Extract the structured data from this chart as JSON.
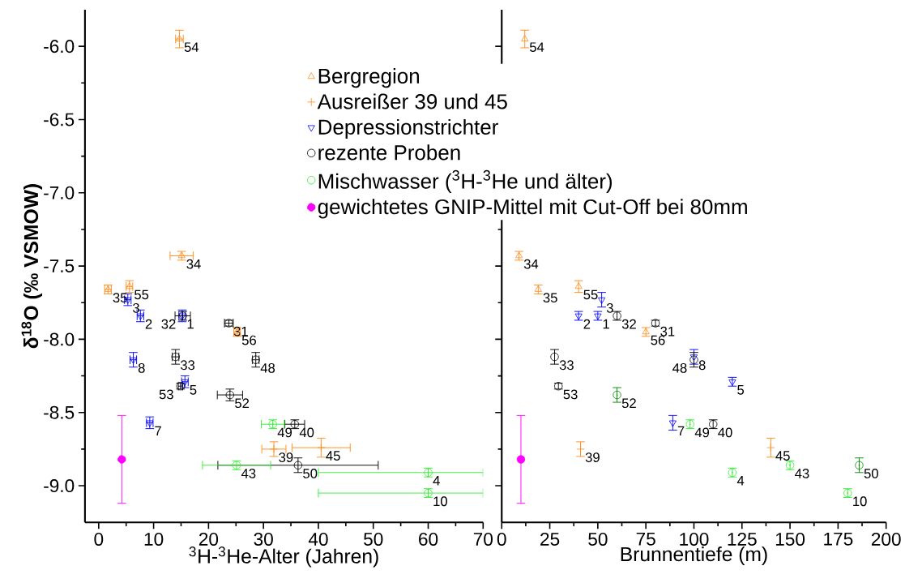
{
  "chart_data": [
    {
      "type": "scatter",
      "xlabel": "$^{3}$H-$^{3}$He-Alter (Jahren)",
      "ylabel": "δ$^{18}$O (‰ VSMOW)",
      "xlim": [
        -2.5,
        70
      ],
      "ylim": [
        -9.25,
        -5.75
      ],
      "xticks": [
        0,
        10,
        20,
        30,
        40,
        50,
        60,
        70
      ],
      "yticks": [
        {
          "value": -6,
          "label": "-6.0"
        },
        {
          "value": -6.5,
          "label": "-6.5"
        },
        {
          "value": -7,
          "label": "-7.0"
        },
        {
          "value": -7.5,
          "label": "-7.5"
        },
        {
          "value": -8,
          "label": "-8.0"
        },
        {
          "value": -8.5,
          "label": "-8.5"
        },
        {
          "value": -9,
          "label": "-9.0"
        }
      ],
      "legend": "top",
      "series": [
        {
          "name": "Bergregion",
          "color": "#ff8c1a",
          "marker": "triangle",
          "x": [
            14.7,
            15.1,
            1.7,
            5.6,
            25.2
          ],
          "values": [
            -5.95,
            -7.43,
            -7.66,
            -7.64,
            -7.95
          ],
          "errors": [
            0.06,
            0.03,
            0.03,
            0.04,
            0.03
          ],
          "xerrors": [
            0.7,
            2.1,
            0.6,
            0.6,
            0.6
          ]
        },
        {
          "name": "Ausreißer 39 und 45",
          "color": "#ff8c1a",
          "marker": "cross",
          "x": [
            31.9,
            40.5
          ],
          "values": [
            -8.75,
            -8.74
          ],
          "errors": [
            0.05,
            0.065
          ],
          "xerrors": [
            2.2,
            5.3
          ]
        },
        {
          "name": "Depressionstrichter",
          "color": "#0000ff",
          "marker": "triangle-down",
          "x": [
            15.2,
            5.3,
            7.6,
            6.3,
            15.7,
            9.3
          ],
          "values": [
            -7.84,
            -7.73,
            -7.84,
            -8.14,
            -8.29,
            -8.57
          ],
          "errors": [
            0.04,
            0.04,
            0.04,
            0.05,
            0.04,
            0.04
          ],
          "xerrors": [
            0.6,
            0.6,
            0.6,
            0.6,
            0.6,
            0.6
          ]
        },
        {
          "name": "rezente Proben",
          "color": "#000000",
          "marker": "circle",
          "x": [
            15.3,
            23.7,
            14.0,
            14.9,
            28.6,
            23.9,
            35.7,
            36.3
          ],
          "values": [
            -7.84,
            -7.89,
            -8.12,
            -8.32,
            -8.14,
            -8.38,
            -8.58,
            -8.86
          ],
          "errors": [
            0.03,
            0.02,
            0.05,
            0.02,
            0.05,
            0.04,
            0.03,
            0.05
          ],
          "xerrors": [
            1.4,
            0.8,
            0.6,
            0.4,
            0.6,
            2.3,
            1.8,
            14.6
          ]
        },
        {
          "name": "Mischwasser ($^{3}$H-$^{3}$He und älter)",
          "color": "#33ee33",
          "marker": "circle-dot",
          "x": [
            31.7,
            25.1,
            60,
            60
          ],
          "values": [
            -8.58,
            -8.86,
            -8.91,
            -9.05
          ],
          "errors": [
            0.03,
            0.03,
            0.03,
            0.03
          ],
          "xerrors": [
            2.1,
            6.2,
            [
              40,
              70
            ],
            [
              40,
              70
            ]
          ]
        },
        {
          "name": "gewichtetes GNIP-Mittel mit Cut-Off bei 80mm",
          "color": "#ff00ff",
          "marker": "circle-filled",
          "x": [
            4.2
          ],
          "values": [
            -8.82
          ],
          "errors": [
            0.3
          ]
        }
      ],
      "annotations": [
        {
          "text": "54",
          "x": 14.7,
          "y": -5.95
        },
        {
          "text": "34",
          "x": 15.1,
          "y": -7.43
        },
        {
          "text": "35",
          "x": 1.7,
          "y": -7.66
        },
        {
          "text": "55",
          "x": 5.6,
          "y": -7.64
        },
        {
          "text": "56",
          "x": 25.2,
          "y": -7.95
        },
        {
          "text": "39",
          "x": 31.9,
          "y": -8.75
        },
        {
          "text": "45",
          "x": 40.5,
          "y": -8.74
        },
        {
          "text": "1",
          "x": 15.2,
          "y": -7.84
        },
        {
          "text": "3",
          "x": 5.3,
          "y": -7.73
        },
        {
          "text": "2",
          "x": 7.6,
          "y": -7.84
        },
        {
          "text": "8",
          "x": 6.3,
          "y": -8.14
        },
        {
          "text": "5",
          "x": 15.7,
          "y": -8.29
        },
        {
          "text": "7",
          "x": 9.3,
          "y": -8.57
        },
        {
          "text": "32",
          "x": 15.3,
          "y": -7.84
        },
        {
          "text": "31",
          "x": 23.7,
          "y": -7.89
        },
        {
          "text": "33",
          "x": 14.0,
          "y": -8.12
        },
        {
          "text": "53",
          "x": 14.9,
          "y": -8.32
        },
        {
          "text": "48",
          "x": 28.6,
          "y": -8.14
        },
        {
          "text": "52",
          "x": 23.9,
          "y": -8.38
        },
        {
          "text": "40",
          "x": 35.7,
          "y": -8.58
        },
        {
          "text": "50",
          "x": 36.3,
          "y": -8.86
        },
        {
          "text": "49",
          "x": 31.7,
          "y": -8.58
        },
        {
          "text": "43",
          "x": 25.1,
          "y": -8.86
        },
        {
          "text": "4",
          "x": 60,
          "y": -8.91
        },
        {
          "text": "10",
          "x": 60,
          "y": -9.05
        }
      ]
    },
    {
      "type": "scatter",
      "xlabel": "Brunnentiefe (m)",
      "xlim": [
        0,
        200
      ],
      "ylim": [
        -9.25,
        -5.75
      ],
      "xticks": [
        0,
        25,
        50,
        75,
        100,
        125,
        150,
        175,
        200
      ],
      "yticks": [
        {
          "value": -6,
          "label": null
        },
        {
          "value": -6.5,
          "label": null
        },
        {
          "value": -7,
          "label": null
        },
        {
          "value": -7.5,
          "label": null
        },
        {
          "value": -8,
          "label": null
        },
        {
          "value": -8.5,
          "label": null
        },
        {
          "value": -9,
          "label": null
        }
      ],
      "tick_labels": "x",
      "series": [
        {
          "color": "#ff8c1a",
          "marker": "triangle",
          "x": [
            12,
            9,
            19,
            40,
            75
          ],
          "values": [
            -5.95,
            -7.43,
            -7.66,
            -7.64,
            -7.95
          ],
          "errors": [
            0.06,
            0.03,
            0.03,
            0.04,
            0.03
          ]
        },
        {
          "color": "#ff8c1a",
          "marker": "cross",
          "x": [
            41,
            140
          ],
          "values": [
            -8.75,
            -8.74
          ],
          "errors": [
            0.05,
            0.065
          ]
        },
        {
          "color": "#0000ff",
          "marker": "triangle-down",
          "x": [
            40,
            50,
            52,
            100,
            120,
            89
          ],
          "values": [
            -7.84,
            -7.84,
            -7.73,
            -8.12,
            -8.29,
            -8.57
          ],
          "errors": [
            0.03,
            0.03,
            0.05,
            0.05,
            0.03,
            0.05
          ]
        },
        {
          "color": "#000000",
          "marker": "circle",
          "x": [
            27.5,
            29.5,
            60,
            80,
            100,
            110
          ],
          "values": [
            -8.12,
            -8.32,
            -7.84,
            -7.89,
            -8.14,
            -8.58
          ],
          "errors": [
            0.05,
            0.02,
            0.03,
            0.02,
            0.05,
            0.03
          ]
        },
        {
          "color": "#008a00",
          "marker": "circle-dot",
          "x": [
            60,
            186
          ],
          "values": [
            -8.38,
            -8.86
          ],
          "errors": [
            0.05,
            0.05
          ]
        },
        {
          "color": "#33ee33",
          "marker": "circle-dot",
          "x": [
            98,
            120,
            150,
            180
          ],
          "values": [
            -8.58,
            -8.91,
            -8.86,
            -9.05
          ],
          "errors": [
            0.03,
            0.03,
            0.03,
            0.03
          ]
        },
        {
          "color": "#ff00ff",
          "marker": "circle-filled",
          "x": [
            10
          ],
          "values": [
            -8.82
          ],
          "errors": [
            0.3
          ]
        }
      ],
      "annotations": [
        {
          "text": "54",
          "x": 12,
          "y": -5.95
        },
        {
          "text": "34",
          "x": 9,
          "y": -7.43
        },
        {
          "text": "35",
          "x": 19,
          "y": -7.66
        },
        {
          "text": "55",
          "x": 40,
          "y": -7.64
        },
        {
          "text": "56",
          "x": 75,
          "y": -7.95
        },
        {
          "text": "39",
          "x": 41,
          "y": -8.75
        },
        {
          "text": "45",
          "x": 140,
          "y": -8.74
        },
        {
          "text": "2",
          "x": 40,
          "y": -7.84
        },
        {
          "text": "1",
          "x": 50,
          "y": -7.84
        },
        {
          "text": "3",
          "x": 52,
          "y": -7.73
        },
        {
          "text": "8",
          "x": 100,
          "y": -8.12
        },
        {
          "text": "5",
          "x": 120,
          "y": -8.29
        },
        {
          "text": "7",
          "x": 89,
          "y": -8.57
        },
        {
          "text": "33",
          "x": 27.5,
          "y": -8.12
        },
        {
          "text": "53",
          "x": 29.5,
          "y": -8.32
        },
        {
          "text": "32",
          "x": 60,
          "y": -7.84
        },
        {
          "text": "31",
          "x": 80,
          "y": -7.89
        },
        {
          "text": "48",
          "x": 100,
          "y": -8.14
        },
        {
          "text": "40",
          "x": 110,
          "y": -8.58
        },
        {
          "text": "52",
          "x": 60,
          "y": -8.38
        },
        {
          "text": "50",
          "x": 186,
          "y": -8.86
        },
        {
          "text": "49",
          "x": 98,
          "y": -8.58
        },
        {
          "text": "4",
          "x": 120,
          "y": -8.91
        },
        {
          "text": "43",
          "x": 150,
          "y": -8.86
        },
        {
          "text": "10",
          "x": 180,
          "y": -9.05
        }
      ]
    }
  ]
}
